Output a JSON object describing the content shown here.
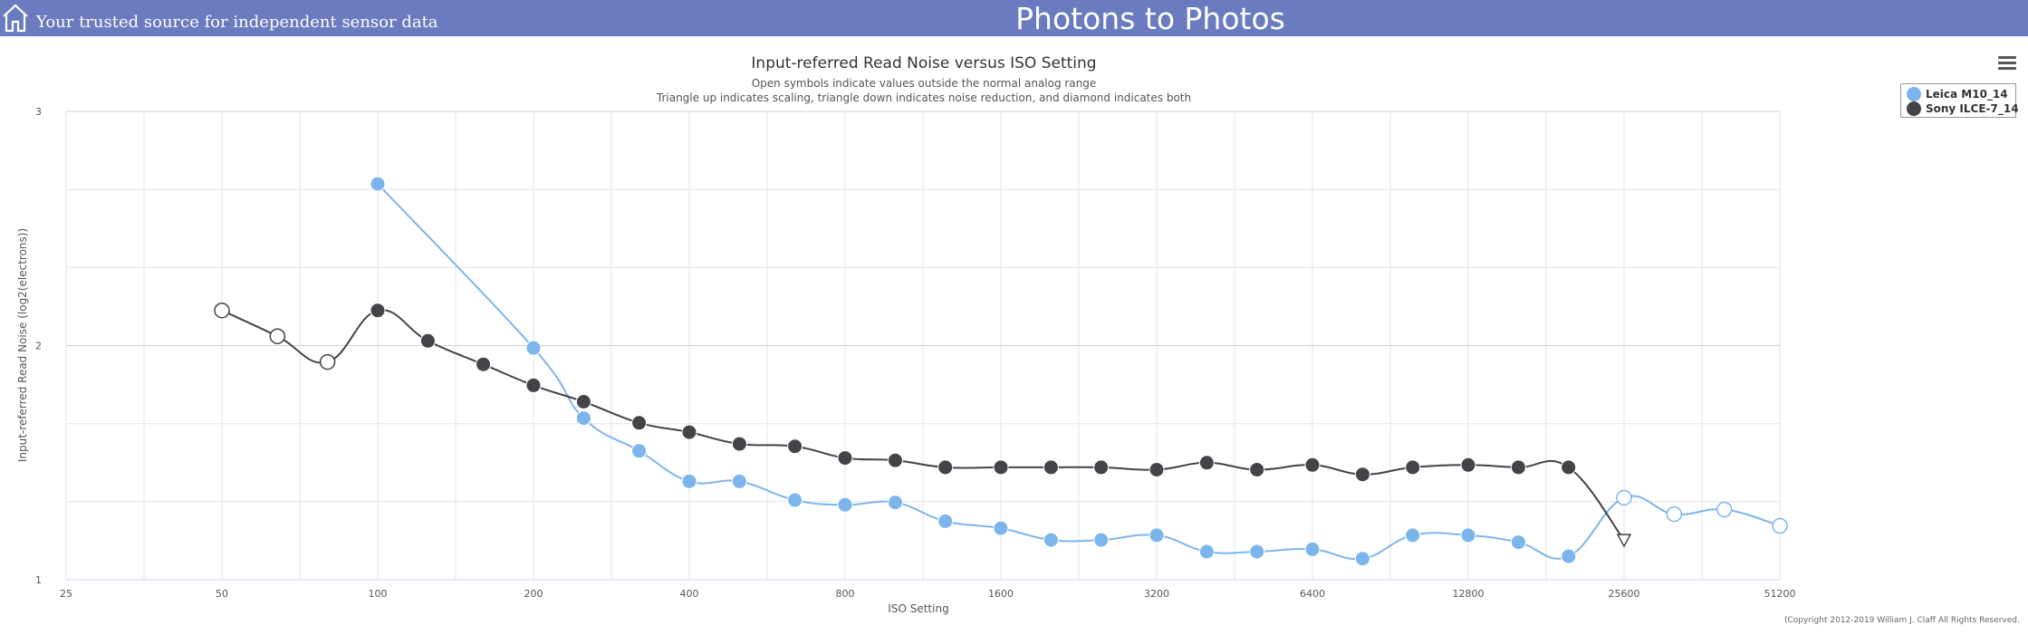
{
  "header": {
    "tagline": "Your trusted source for independent sensor data",
    "site_title": "Photons to Photos",
    "home_icon": "home-icon",
    "background_color": "#6b7bbf"
  },
  "menu_icon": "hamburger-menu-icon",
  "copyright": "(Copyright 2012-2019 William J. Claff All Rights Reserved.",
  "chart_data": {
    "type": "line",
    "title": "Input-referred Read Noise versus ISO Setting",
    "subtitle": [
      "Open symbols indicate values outside the normal analog range",
      "Triangle up indicates scaling, triangle down indicates noise reduction, and diamond indicates both"
    ],
    "xlabel": "ISO Setting",
    "ylabel": "Input-referred Read Noise (log2(electrons))",
    "x_scale": "log2",
    "x_ticks": [
      "25",
      "50",
      "100",
      "200",
      "400",
      "800",
      "1600",
      "3200",
      "6400",
      "12800",
      "25600",
      "51200"
    ],
    "xlim": [
      25,
      51200
    ],
    "y_ticks": [
      "1",
      "2",
      "3"
    ],
    "ylim": [
      1,
      3
    ],
    "grid": true,
    "legend_position": "top-right",
    "series": [
      {
        "name": "Leica M10_14",
        "color": "#7cb5ec",
        "points": [
          {
            "x": 100,
            "y": 2.69,
            "marker": "filled-circle"
          },
          {
            "x": 200,
            "y": 1.99,
            "marker": "filled-circle"
          },
          {
            "x": 250,
            "y": 1.69,
            "marker": "filled-circle"
          },
          {
            "x": 320,
            "y": 1.55,
            "marker": "filled-circle"
          },
          {
            "x": 400,
            "y": 1.42,
            "marker": "filled-circle"
          },
          {
            "x": 500,
            "y": 1.42,
            "marker": "filled-circle"
          },
          {
            "x": 640,
            "y": 1.34,
            "marker": "filled-circle"
          },
          {
            "x": 800,
            "y": 1.32,
            "marker": "filled-circle"
          },
          {
            "x": 1000,
            "y": 1.33,
            "marker": "filled-circle"
          },
          {
            "x": 1250,
            "y": 1.25,
            "marker": "filled-circle"
          },
          {
            "x": 1600,
            "y": 1.22,
            "marker": "filled-circle"
          },
          {
            "x": 2000,
            "y": 1.17,
            "marker": "filled-circle"
          },
          {
            "x": 2500,
            "y": 1.17,
            "marker": "filled-circle"
          },
          {
            "x": 3200,
            "y": 1.19,
            "marker": "filled-circle"
          },
          {
            "x": 4000,
            "y": 1.12,
            "marker": "filled-circle"
          },
          {
            "x": 5000,
            "y": 1.12,
            "marker": "filled-circle"
          },
          {
            "x": 6400,
            "y": 1.13,
            "marker": "filled-circle"
          },
          {
            "x": 8000,
            "y": 1.09,
            "marker": "filled-circle"
          },
          {
            "x": 10000,
            "y": 1.19,
            "marker": "filled-circle"
          },
          {
            "x": 12800,
            "y": 1.19,
            "marker": "filled-circle"
          },
          {
            "x": 16000,
            "y": 1.16,
            "marker": "filled-circle"
          },
          {
            "x": 20000,
            "y": 1.1,
            "marker": "filled-circle"
          },
          {
            "x": 25600,
            "y": 1.35,
            "marker": "open-circle"
          },
          {
            "x": 32000,
            "y": 1.28,
            "marker": "open-circle"
          },
          {
            "x": 40000,
            "y": 1.3,
            "marker": "open-circle"
          },
          {
            "x": 51200,
            "y": 1.23,
            "marker": "open-circle"
          }
        ]
      },
      {
        "name": "Sony ILCE-7_14",
        "color": "#434348",
        "points": [
          {
            "x": 50,
            "y": 2.15,
            "marker": "open-circle"
          },
          {
            "x": 64,
            "y": 2.04,
            "marker": "open-circle"
          },
          {
            "x": 80,
            "y": 1.93,
            "marker": "open-circle"
          },
          {
            "x": 100,
            "y": 2.15,
            "marker": "filled-circle"
          },
          {
            "x": 125,
            "y": 2.02,
            "marker": "filled-circle"
          },
          {
            "x": 160,
            "y": 1.92,
            "marker": "filled-circle"
          },
          {
            "x": 200,
            "y": 1.83,
            "marker": "filled-circle"
          },
          {
            "x": 250,
            "y": 1.76,
            "marker": "filled-circle"
          },
          {
            "x": 320,
            "y": 1.67,
            "marker": "filled-circle"
          },
          {
            "x": 400,
            "y": 1.63,
            "marker": "filled-circle"
          },
          {
            "x": 500,
            "y": 1.58,
            "marker": "filled-circle"
          },
          {
            "x": 640,
            "y": 1.57,
            "marker": "filled-circle"
          },
          {
            "x": 800,
            "y": 1.52,
            "marker": "filled-circle"
          },
          {
            "x": 1000,
            "y": 1.51,
            "marker": "filled-circle"
          },
          {
            "x": 1250,
            "y": 1.48,
            "marker": "filled-circle"
          },
          {
            "x": 1600,
            "y": 1.48,
            "marker": "filled-circle"
          },
          {
            "x": 2000,
            "y": 1.48,
            "marker": "filled-circle"
          },
          {
            "x": 2500,
            "y": 1.48,
            "marker": "filled-circle"
          },
          {
            "x": 3200,
            "y": 1.47,
            "marker": "filled-circle"
          },
          {
            "x": 4000,
            "y": 1.5,
            "marker": "filled-circle"
          },
          {
            "x": 5000,
            "y": 1.47,
            "marker": "filled-circle"
          },
          {
            "x": 6400,
            "y": 1.49,
            "marker": "filled-circle"
          },
          {
            "x": 8000,
            "y": 1.45,
            "marker": "filled-circle"
          },
          {
            "x": 10000,
            "y": 1.48,
            "marker": "filled-circle"
          },
          {
            "x": 12800,
            "y": 1.49,
            "marker": "filled-circle"
          },
          {
            "x": 16000,
            "y": 1.48,
            "marker": "filled-circle"
          },
          {
            "x": 20000,
            "y": 1.48,
            "marker": "filled-circle"
          },
          {
            "x": 25600,
            "y": 1.17,
            "marker": "open-triangle-down"
          }
        ]
      }
    ]
  }
}
